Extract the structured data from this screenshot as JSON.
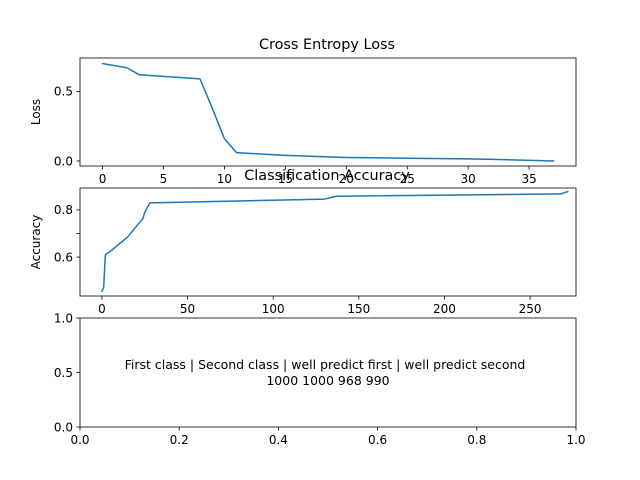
{
  "chart_data": [
    {
      "type": "line",
      "title": "Cross Entropy Loss",
      "xlabel": "",
      "ylabel": "Loss",
      "xlim": [
        -1.85,
        38.85
      ],
      "ylim": [
        -0.036,
        0.74
      ],
      "xticks": [
        0,
        5,
        10,
        15,
        20,
        25,
        30,
        35
      ],
      "yticks": [
        0.0,
        0.5
      ],
      "ytick_labels": [
        "0.0",
        "0.5"
      ],
      "grid": false,
      "color": "#1f77b4",
      "series": [
        {
          "x": [
            0,
            2,
            3,
            8,
            9,
            10,
            11,
            15,
            20,
            25,
            30,
            33,
            37
          ],
          "y": [
            0.7,
            0.67,
            0.62,
            0.59,
            0.38,
            0.16,
            0.06,
            0.04,
            0.025,
            0.02,
            0.015,
            0.01,
            0.0
          ]
        }
      ]
    },
    {
      "type": "line",
      "title": "Classification Accuracy",
      "xlabel": "",
      "ylabel": "Accuracy",
      "xlim": [
        -12.8,
        276.8
      ],
      "ylim": [
        0.435,
        0.893
      ],
      "xticks": [
        0,
        50,
        100,
        150,
        200,
        250
      ],
      "yticks": [
        0.6,
        0.7,
        0.8
      ],
      "yticks_labeled": [
        0.6,
        0.8
      ],
      "ytick_labels": [
        "0.6",
        "0.8"
      ],
      "grid": false,
      "color": "#1f77b4",
      "series": [
        {
          "x": [
            0,
            1,
            2,
            5,
            10,
            15,
            20,
            23,
            24,
            25,
            28,
            130,
            137,
            268,
            272
          ],
          "y": [
            0.455,
            0.47,
            0.61,
            0.625,
            0.655,
            0.685,
            0.73,
            0.755,
            0.765,
            0.79,
            0.83,
            0.846,
            0.858,
            0.868,
            0.878
          ]
        }
      ]
    },
    {
      "type": "table",
      "title": "",
      "xlim": [
        0.0,
        1.0
      ],
      "ylim": [
        0.0,
        1.0
      ],
      "xticks": [
        0.0,
        0.2,
        0.4,
        0.6,
        0.8,
        1.0
      ],
      "xtick_labels": [
        "0.0",
        "0.2",
        "0.4",
        "0.6",
        "0.8",
        "1.0"
      ],
      "yticks": [
        0.0,
        0.5,
        1.0
      ],
      "ytick_labels": [
        "0.0",
        "0.5",
        "1.0"
      ],
      "text_color": "#aaaaaa",
      "header": "First class | Second class | well predict first | well predict second",
      "values_line": "1000 1000 968 990",
      "columns": [
        "First class",
        "Second class",
        "well predict first",
        "well predict second"
      ],
      "values": [
        1000,
        1000,
        968,
        990
      ]
    }
  ]
}
